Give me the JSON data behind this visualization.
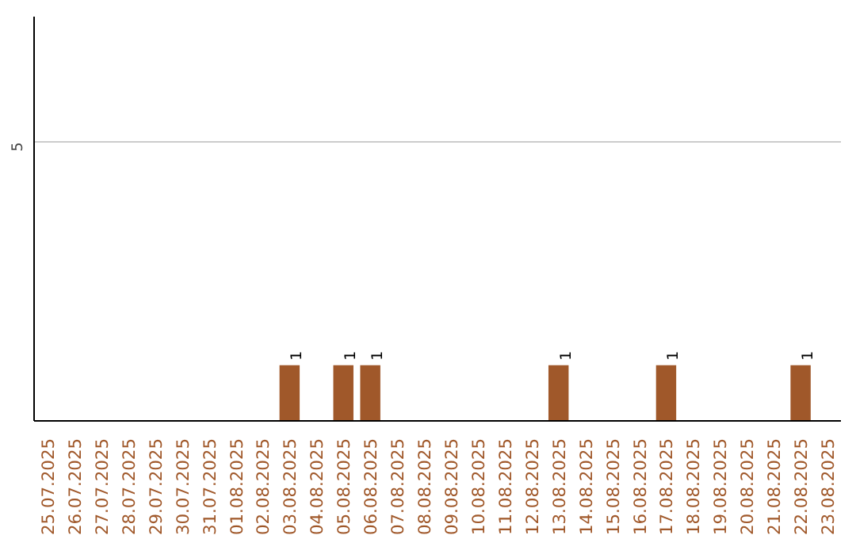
{
  "chart_data": {
    "type": "bar",
    "categories": [
      "25.07.2025",
      "26.07.2025",
      "27.07.2025",
      "28.07.2025",
      "29.07.2025",
      "30.07.2025",
      "31.07.2025",
      "01.08.2025",
      "02.08.2025",
      "03.08.2025",
      "04.08.2025",
      "05.08.2025",
      "06.08.2025",
      "07.08.2025",
      "08.08.2025",
      "09.08.2025",
      "10.08.2025",
      "11.08.2025",
      "12.08.2025",
      "13.08.2025",
      "14.08.2025",
      "15.08.2025",
      "16.08.2025",
      "17.08.2025",
      "18.08.2025",
      "19.08.2025",
      "20.08.2025",
      "21.08.2025",
      "22.08.2025",
      "23.08.2025"
    ],
    "values": [
      0,
      0,
      0,
      0,
      0,
      0,
      0,
      0,
      0,
      1,
      0,
      1,
      1,
      0,
      0,
      0,
      0,
      0,
      0,
      1,
      0,
      0,
      0,
      1,
      0,
      0,
      0,
      0,
      1,
      0
    ],
    "value_labels": [
      null,
      null,
      null,
      null,
      null,
      null,
      null,
      null,
      null,
      "1",
      null,
      "1",
      "1",
      null,
      null,
      null,
      null,
      null,
      null,
      "1",
      null,
      null,
      null,
      "1",
      null,
      null,
      null,
      null,
      "1",
      null
    ],
    "color": "#a0582a",
    "ylim": [
      0,
      7.25
    ],
    "yticks": [
      5
    ],
    "grid": "y"
  }
}
